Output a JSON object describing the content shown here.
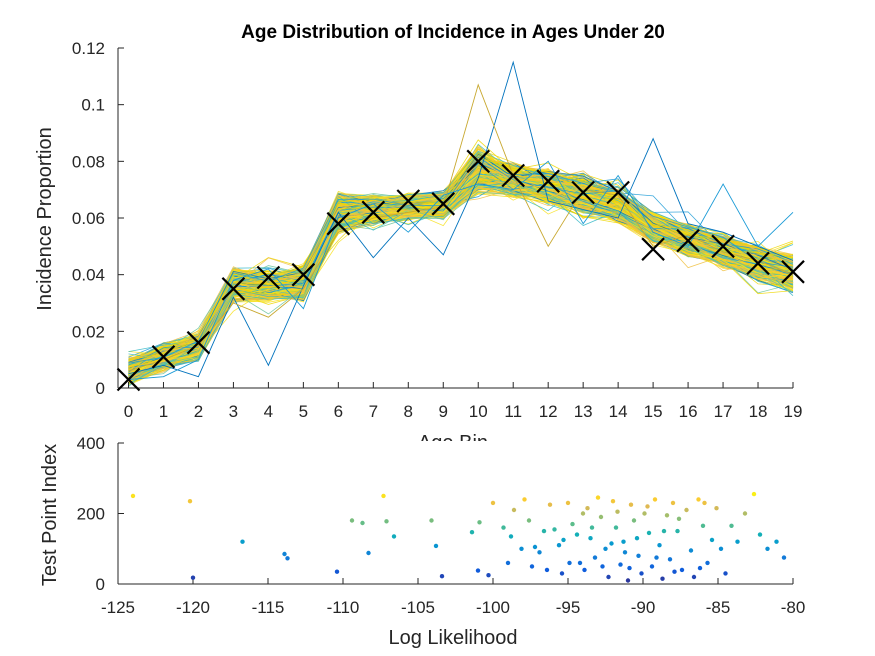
{
  "chart_data": [
    {
      "type": "line",
      "title": "Age Distribution of Incidence in Ages Under 20",
      "xlabel": "Age Bin",
      "ylabel": "Incidence Proportion",
      "xlim": [
        -0.3,
        19
      ],
      "ylim": [
        0,
        0.12
      ],
      "xticks": [
        "0",
        "1",
        "2",
        "3",
        "4",
        "5",
        "6",
        "7",
        "8",
        "9",
        "10",
        "11",
        "12",
        "13",
        "14",
        "15",
        "16",
        "17",
        "18",
        "19"
      ],
      "yticks": [
        "0",
        "0.02",
        "0.04",
        "0.06",
        "0.08",
        "0.1",
        "0.12"
      ],
      "marker_series": {
        "name": "Observed",
        "marker": "x",
        "color": "#000000",
        "x": [
          0,
          1,
          2,
          3,
          4,
          5,
          6,
          7,
          8,
          9,
          10,
          11,
          12,
          13,
          14,
          15,
          16,
          17,
          18,
          19
        ],
        "values": [
          0.003,
          0.011,
          0.016,
          0.035,
          0.039,
          0.04,
          0.058,
          0.062,
          0.066,
          0.065,
          0.08,
          0.075,
          0.073,
          0.069,
          0.069,
          0.049,
          0.052,
          0.05,
          0.044,
          0.041
        ]
      },
      "simulated_lines": {
        "count": 300,
        "description_colors": [
          "#0072bd",
          "#1a9ad6",
          "#33b7c6",
          "#6cc49c",
          "#f0c040",
          "#f7e020",
          "#edd600"
        ],
        "low": [
          0.001,
          0.006,
          0.009,
          0.03,
          0.03,
          0.03,
          0.054,
          0.057,
          0.059,
          0.059,
          0.068,
          0.067,
          0.064,
          0.06,
          0.058,
          0.05,
          0.046,
          0.042,
          0.037,
          0.033
        ],
        "high": [
          0.011,
          0.016,
          0.02,
          0.043,
          0.043,
          0.044,
          0.07,
          0.069,
          0.069,
          0.07,
          0.086,
          0.08,
          0.078,
          0.076,
          0.072,
          0.063,
          0.059,
          0.055,
          0.051,
          0.048
        ],
        "outliers": [
          {
            "color": "#0072bd",
            "values": [
              0.005,
              0.008,
              0.004,
              0.032,
              0.008,
              0.036,
              0.062,
              0.046,
              0.06,
              0.047,
              0.074,
              0.115,
              0.066,
              0.063,
              0.06,
              0.088,
              0.058,
              0.055,
              0.05,
              0.045
            ]
          },
          {
            "color": "#c8a830",
            "values": [
              0.006,
              0.01,
              0.015,
              0.03,
              0.025,
              0.035,
              0.055,
              0.06,
              0.062,
              0.064,
              0.107,
              0.075,
              0.05,
              0.07,
              0.068,
              0.05,
              0.054,
              0.048,
              0.045,
              0.04
            ]
          },
          {
            "color": "#1a9ad6",
            "values": [
              0.003,
              0.004,
              0.01,
              0.038,
              0.042,
              0.028,
              0.06,
              0.065,
              0.055,
              0.068,
              0.072,
              0.07,
              0.08,
              0.058,
              0.075,
              0.055,
              0.05,
              0.072,
              0.05,
              0.062
            ]
          }
        ]
      }
    },
    {
      "type": "scatter",
      "xlabel": "Log Likelihood",
      "ylabel": "Test Point Index",
      "xlim": [
        -125,
        -80
      ],
      "ylim": [
        0,
        400
      ],
      "xticks": [
        "-125",
        "-120",
        "-115",
        "-110",
        "-105",
        "-100",
        "-95",
        "-90",
        "-85",
        "-80"
      ],
      "yticks": [
        "0",
        "200",
        "400"
      ],
      "colormap": "parula",
      "points": [
        {
          "x": -124.0,
          "y": 250
        },
        {
          "x": -120.2,
          "y": 235
        },
        {
          "x": -120.0,
          "y": 18
        },
        {
          "x": -116.7,
          "y": 120
        },
        {
          "x": -113.9,
          "y": 85
        },
        {
          "x": -113.7,
          "y": 73
        },
        {
          "x": -110.4,
          "y": 35
        },
        {
          "x": -109.4,
          "y": 180
        },
        {
          "x": -108.7,
          "y": 173
        },
        {
          "x": -108.3,
          "y": 88
        },
        {
          "x": -107.3,
          "y": 250
        },
        {
          "x": -107.1,
          "y": 178
        },
        {
          "x": -106.6,
          "y": 135
        },
        {
          "x": -104.1,
          "y": 180
        },
        {
          "x": -103.8,
          "y": 108
        },
        {
          "x": -103.4,
          "y": 22
        },
        {
          "x": -101.4,
          "y": 147
        },
        {
          "x": -101.0,
          "y": 38
        },
        {
          "x": -100.9,
          "y": 175
        },
        {
          "x": -100.3,
          "y": 25
        },
        {
          "x": -100.0,
          "y": 230
        },
        {
          "x": -99.3,
          "y": 160
        },
        {
          "x": -98.8,
          "y": 135
        },
        {
          "x": -98.6,
          "y": 210
        },
        {
          "x": -98.1,
          "y": 100
        },
        {
          "x": -97.9,
          "y": 240
        },
        {
          "x": -97.6,
          "y": 180
        },
        {
          "x": -97.2,
          "y": 105
        },
        {
          "x": -96.9,
          "y": 90
        },
        {
          "x": -96.6,
          "y": 150
        },
        {
          "x": -96.4,
          "y": 40
        },
        {
          "x": -95.9,
          "y": 155
        },
        {
          "x": -95.6,
          "y": 110
        },
        {
          "x": -95.4,
          "y": 30
        },
        {
          "x": -95.0,
          "y": 230
        },
        {
          "x": -94.7,
          "y": 170
        },
        {
          "x": -94.4,
          "y": 140
        },
        {
          "x": -94.2,
          "y": 60
        },
        {
          "x": -93.9,
          "y": 40
        },
        {
          "x": -93.7,
          "y": 215
        },
        {
          "x": -93.5,
          "y": 130
        },
        {
          "x": -93.2,
          "y": 75
        },
        {
          "x": -93.0,
          "y": 245
        },
        {
          "x": -92.8,
          "y": 190
        },
        {
          "x": -92.5,
          "y": 100
        },
        {
          "x": -92.3,
          "y": 20
        },
        {
          "x": -92.0,
          "y": 235
        },
        {
          "x": -91.8,
          "y": 160
        },
        {
          "x": -91.5,
          "y": 55
        },
        {
          "x": -91.3,
          "y": 120
        },
        {
          "x": -91.0,
          "y": 10
        },
        {
          "x": -90.8,
          "y": 225
        },
        {
          "x": -90.6,
          "y": 180
        },
        {
          "x": -90.3,
          "y": 80
        },
        {
          "x": -90.1,
          "y": 30
        },
        {
          "x": -89.9,
          "y": 200
        },
        {
          "x": -89.6,
          "y": 145
        },
        {
          "x": -89.4,
          "y": 50
        },
        {
          "x": -89.2,
          "y": 240
        },
        {
          "x": -88.9,
          "y": 110
        },
        {
          "x": -88.7,
          "y": 15
        },
        {
          "x": -88.4,
          "y": 195
        },
        {
          "x": -88.2,
          "y": 70
        },
        {
          "x": -88.0,
          "y": 230
        },
        {
          "x": -87.7,
          "y": 150
        },
        {
          "x": -87.4,
          "y": 40
        },
        {
          "x": -87.1,
          "y": 210
        },
        {
          "x": -86.8,
          "y": 95
        },
        {
          "x": -86.6,
          "y": 20
        },
        {
          "x": -86.3,
          "y": 240
        },
        {
          "x": -86.0,
          "y": 165
        },
        {
          "x": -85.7,
          "y": 60
        },
        {
          "x": -85.4,
          "y": 125
        },
        {
          "x": -85.1,
          "y": 215
        },
        {
          "x": -84.8,
          "y": 100
        },
        {
          "x": -84.5,
          "y": 30
        },
        {
          "x": -84.1,
          "y": 165
        },
        {
          "x": -83.7,
          "y": 120
        },
        {
          "x": -83.2,
          "y": 200
        },
        {
          "x": -82.6,
          "y": 255
        },
        {
          "x": -82.2,
          "y": 140
        },
        {
          "x": -81.7,
          "y": 100
        },
        {
          "x": -81.1,
          "y": 120
        },
        {
          "x": -80.6,
          "y": 75
        },
        {
          "x": -96.2,
          "y": 225
        },
        {
          "x": -94.0,
          "y": 200
        },
        {
          "x": -91.7,
          "y": 205
        },
        {
          "x": -89.7,
          "y": 220
        },
        {
          "x": -87.6,
          "y": 185
        },
        {
          "x": -85.9,
          "y": 230
        },
        {
          "x": -93.4,
          "y": 160
        },
        {
          "x": -90.4,
          "y": 130
        },
        {
          "x": -88.6,
          "y": 150
        },
        {
          "x": -92.7,
          "y": 50
        },
        {
          "x": -90.9,
          "y": 45
        },
        {
          "x": -87.9,
          "y": 35
        },
        {
          "x": -86.2,
          "y": 45
        },
        {
          "x": -94.9,
          "y": 60
        },
        {
          "x": -91.2,
          "y": 90
        },
        {
          "x": -89.1,
          "y": 75
        },
        {
          "x": -95.3,
          "y": 125
        },
        {
          "x": -92.1,
          "y": 115
        },
        {
          "x": -97.4,
          "y": 50
        },
        {
          "x": -99.0,
          "y": 60
        }
      ]
    }
  ]
}
